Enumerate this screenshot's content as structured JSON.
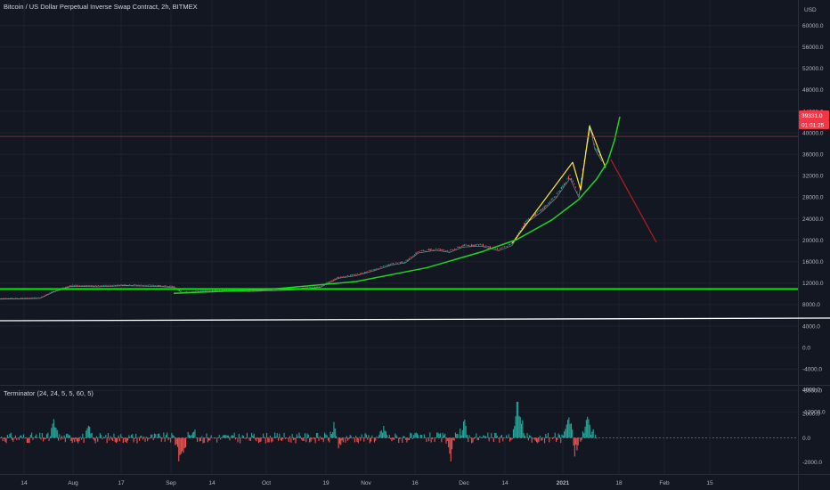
{
  "header": {
    "title": "Bitcoin / US Dollar Perpetual Inverse Swap Contract, 2h, BITMEX",
    "currency": "USD"
  },
  "indicator": {
    "title": "Terminator (24, 24, 5, 5, 60, 5)"
  },
  "badges": {
    "price": "39331.0",
    "countdown": "01:01:25",
    "color": "#f23645"
  },
  "colors": {
    "background": "#131722",
    "grid": "#1e222d",
    "bull": "#26a69a",
    "bear": "#ef5350",
    "support": "#00e600",
    "curve": "#22d322",
    "wave": "#ffeb3b",
    "projection": "#b71c1c",
    "baseline": "#ffffff"
  },
  "chart_data": [
    {
      "type": "line",
      "title": "Bitcoin / US Dollar Perpetual Inverse Swap Contract, 2h, BITMEX",
      "price_axis_ticks": [
        "60000.0",
        "56000.0",
        "52000.0",
        "48000.0",
        "44000.0",
        "40000.0",
        "36000.0",
        "32000.0",
        "28000.0",
        "24000.0",
        "20000.0",
        "16000.0",
        "12000.0",
        "8000.0",
        "4000.0",
        "0.0",
        "-4000.0",
        "-8000.0",
        "-12000.0"
      ],
      "time_axis_ticks": [
        "14",
        "Aug",
        "17",
        "Sep",
        "14",
        "Oct",
        "19",
        "Nov",
        "16",
        "Dec",
        "14",
        "2021",
        "18",
        "Feb",
        "15"
      ],
      "ylim": [
        -12400,
        61000
      ],
      "current_price": 39331.0,
      "series": [
        {
          "kind": "price",
          "points": [
            [
              0,
              9150
            ],
            [
              20,
              9180
            ],
            [
              45,
              9300
            ],
            [
              60,
              10500
            ],
            [
              80,
              11600
            ],
            [
              110,
              11500
            ],
            [
              140,
              11700
            ],
            [
              170,
              11600
            ],
            [
              195,
              11400
            ],
            [
              205,
              10300
            ],
            [
              220,
              10500
            ],
            [
              250,
              10700
            ],
            [
              280,
              10600
            ],
            [
              300,
              10700
            ],
            [
              330,
              10900
            ],
            [
              360,
              11400
            ],
            [
              380,
              13100
            ],
            [
              400,
              13600
            ],
            [
              420,
              14500
            ],
            [
              440,
              15600
            ],
            [
              455,
              16000
            ],
            [
              470,
              17900
            ],
            [
              490,
              18400
            ],
            [
              505,
              18000
            ],
            [
              520,
              19000
            ],
            [
              540,
              19200
            ],
            [
              560,
              18300
            ],
            [
              575,
              19300
            ],
            [
              590,
              23400
            ],
            [
              610,
              25900
            ],
            [
              625,
              28400
            ],
            [
              640,
              32000
            ],
            [
              650,
              28400
            ],
            [
              657,
              36000
            ],
            [
              663,
              41500
            ],
            [
              668,
              37500
            ],
            [
              676,
              35200
            ]
          ]
        },
        {
          "kind": "wave",
          "points": [
            [
              575,
              19400
            ],
            [
              643,
              34500
            ],
            [
              652,
              29400
            ],
            [
              662,
              41300
            ],
            [
              680,
              33500
            ]
          ]
        },
        {
          "kind": "projection",
          "points": [
            [
              686,
              35000
            ],
            [
              737,
              19600
            ]
          ]
        },
        {
          "kind": "support_level",
          "value": 10900
        },
        {
          "kind": "baseline",
          "points": [
            [
              0,
              5000
            ],
            [
              932,
              5500
            ]
          ]
        },
        {
          "kind": "curve",
          "points": [
            [
              195,
              10100
            ],
            [
              300,
              10800
            ],
            [
              400,
              12300
            ],
            [
              480,
              14900
            ],
            [
              540,
              17800
            ],
            [
              580,
              20100
            ],
            [
              620,
              23800
            ],
            [
              650,
              27600
            ],
            [
              670,
              31400
            ],
            [
              682,
              34500
            ],
            [
              690,
              38600
            ],
            [
              696,
              43000
            ]
          ]
        },
        {
          "kind": "horizontal_price",
          "value": 39331.0
        }
      ]
    },
    {
      "type": "bar",
      "title": "Terminator (24, 24, 5, 5, 60, 5)",
      "axis_ticks": [
        "4000.0",
        "2000.0",
        "0.0",
        "-2000.0"
      ],
      "ylim": [
        -2800,
        4300
      ]
    }
  ]
}
